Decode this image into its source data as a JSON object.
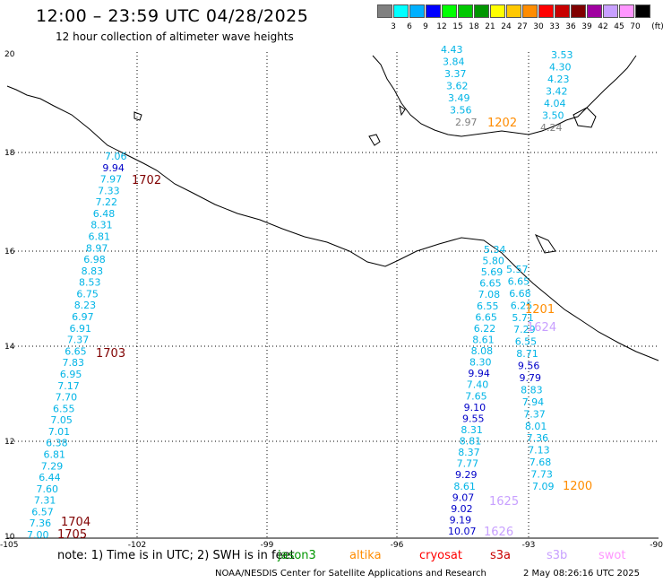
{
  "title": "12:00 – 23:59 UTC 04/28/2025",
  "subtitle": "12 hour collection of altimeter wave heights",
  "legend": {
    "unit": "(ft)",
    "bins": [
      {
        "label": "3",
        "color": "#808080"
      },
      {
        "label": "6",
        "color": "#00ffff"
      },
      {
        "label": "9",
        "color": "#00b0ff"
      },
      {
        "label": "12",
        "color": "#0000ff"
      },
      {
        "label": "15",
        "color": "#00ff00"
      },
      {
        "label": "18",
        "color": "#00c800"
      },
      {
        "label": "21",
        "color": "#009600"
      },
      {
        "label": "24",
        "color": "#ffff00"
      },
      {
        "label": "27",
        "color": "#ffc800"
      },
      {
        "label": "30",
        "color": "#ff8c00"
      },
      {
        "label": "33",
        "color": "#ff0000"
      },
      {
        "label": "36",
        "color": "#c80000"
      },
      {
        "label": "39",
        "color": "#800000"
      },
      {
        "label": "42",
        "color": "#a000a0"
      },
      {
        "label": "45",
        "color": "#c8a0ff"
      },
      {
        "label": "70",
        "color": "#ff96ff"
      },
      {
        "label": "",
        "color": "#000000"
      }
    ]
  },
  "axes": {
    "lon_labels": [
      "-105",
      "-102",
      "-99",
      "-96",
      "-93",
      "-90"
    ],
    "lat_labels": [
      "20",
      "18",
      "16",
      "14",
      "12",
      "10"
    ]
  },
  "passes": [
    {
      "time": "1702",
      "color": "#800000"
    },
    {
      "time": "1703",
      "color": "#800000"
    },
    {
      "time": "1704",
      "color": "#800000"
    },
    {
      "time": "1705",
      "color": "#800000"
    },
    {
      "time": "1202",
      "color": "#ff8c00"
    },
    {
      "time": "1201",
      "color": "#ff8c00"
    },
    {
      "time": "1200",
      "color": "#ff8c00"
    },
    {
      "time": "1624",
      "color": "#c8a0ff"
    },
    {
      "time": "1625",
      "color": "#c8a0ff"
    },
    {
      "time": "1626",
      "color": "#c8a0ff"
    }
  ],
  "track_west": [
    "7.06",
    "9.94",
    "7.97",
    "7.33",
    "7.22",
    "6.48",
    "8.31",
    "6.81",
    "8.97",
    "6.98",
    "8.83",
    "8.53",
    "6.75",
    "8.23",
    "6.97",
    "6.91",
    "7.37",
    "6.65",
    "7.83",
    "6.95",
    "7.17",
    "7.70",
    "6.55",
    "7.05",
    "7.01",
    "6.38",
    "6.81",
    "7.29",
    "6.44",
    "7.60",
    "7.31",
    "6.57",
    "7.36",
    "7.00"
  ],
  "track_west_colors": [
    "c",
    "b",
    "c",
    "c",
    "c",
    "c",
    "c",
    "c",
    "c",
    "c",
    "c",
    "c",
    "c",
    "c",
    "c",
    "c",
    "c",
    "c",
    "c",
    "c",
    "c",
    "c",
    "c",
    "c",
    "c",
    "c",
    "c",
    "c",
    "c",
    "c",
    "c",
    "c",
    "c",
    "c"
  ],
  "track_north_left": [
    "4.43",
    "3.84",
    "3.37",
    "3.62",
    "3.49",
    "3.56",
    "2.97"
  ],
  "track_north_right": [
    "3.53",
    "4.30",
    "4.23",
    "3.42",
    "4.04",
    "3.50",
    "4.24"
  ],
  "track_east_a": [
    "5.34",
    "5.80",
    "5.69",
    "6.65",
    "7.08",
    "6.55",
    "6.65",
    "6.22",
    "8.61",
    "8.08",
    "8.30",
    "9.94",
    "7.40",
    "7.65",
    "9.10",
    "9.55",
    "8.31",
    "8.81",
    "8.37",
    "7.77",
    "9.29",
    "8.61",
    "9.07",
    "9.02",
    "9.19",
    "10.07"
  ],
  "track_east_a_colors": [
    "c",
    "c",
    "c",
    "c",
    "c",
    "c",
    "c",
    "c",
    "c",
    "c",
    "c",
    "b",
    "c",
    "c",
    "b",
    "b",
    "c",
    "c",
    "c",
    "c",
    "b",
    "c",
    "b",
    "b",
    "b",
    "b"
  ],
  "track_east_b": [
    "5.57",
    "6.65",
    "6.68",
    "6.25",
    "5.71",
    "7.29",
    "6.55",
    "8.71",
    "9.56",
    "9.79",
    "8.83",
    "7.94",
    "7.37",
    "8.01",
    "7.36",
    "7.13",
    "7.68",
    "7.73",
    "7.09"
  ],
  "track_east_b_colors": [
    "c",
    "c",
    "c",
    "c",
    "c",
    "c",
    "c",
    "c",
    "b",
    "b",
    "c",
    "c",
    "c",
    "c",
    "c",
    "c",
    "c",
    "c",
    "c"
  ],
  "note_text": "note:  1) Time is in UTC; 2) SWH is in feet",
  "satellites": [
    {
      "name": "jason3",
      "color": "#009600"
    },
    {
      "name": "altika",
      "color": "#ff8c00"
    },
    {
      "name": "cryosat",
      "color": "#ff0000"
    },
    {
      "name": "s3a",
      "color": "#c80000"
    },
    {
      "name": "s3b",
      "color": "#c8a0ff"
    },
    {
      "name": "swot",
      "color": "#ff96ff"
    }
  ],
  "credit": "NOAA/NESDIS Center for Satellite Applications and Research",
  "stamp": "2 May 08:26:16 UTC 2025"
}
